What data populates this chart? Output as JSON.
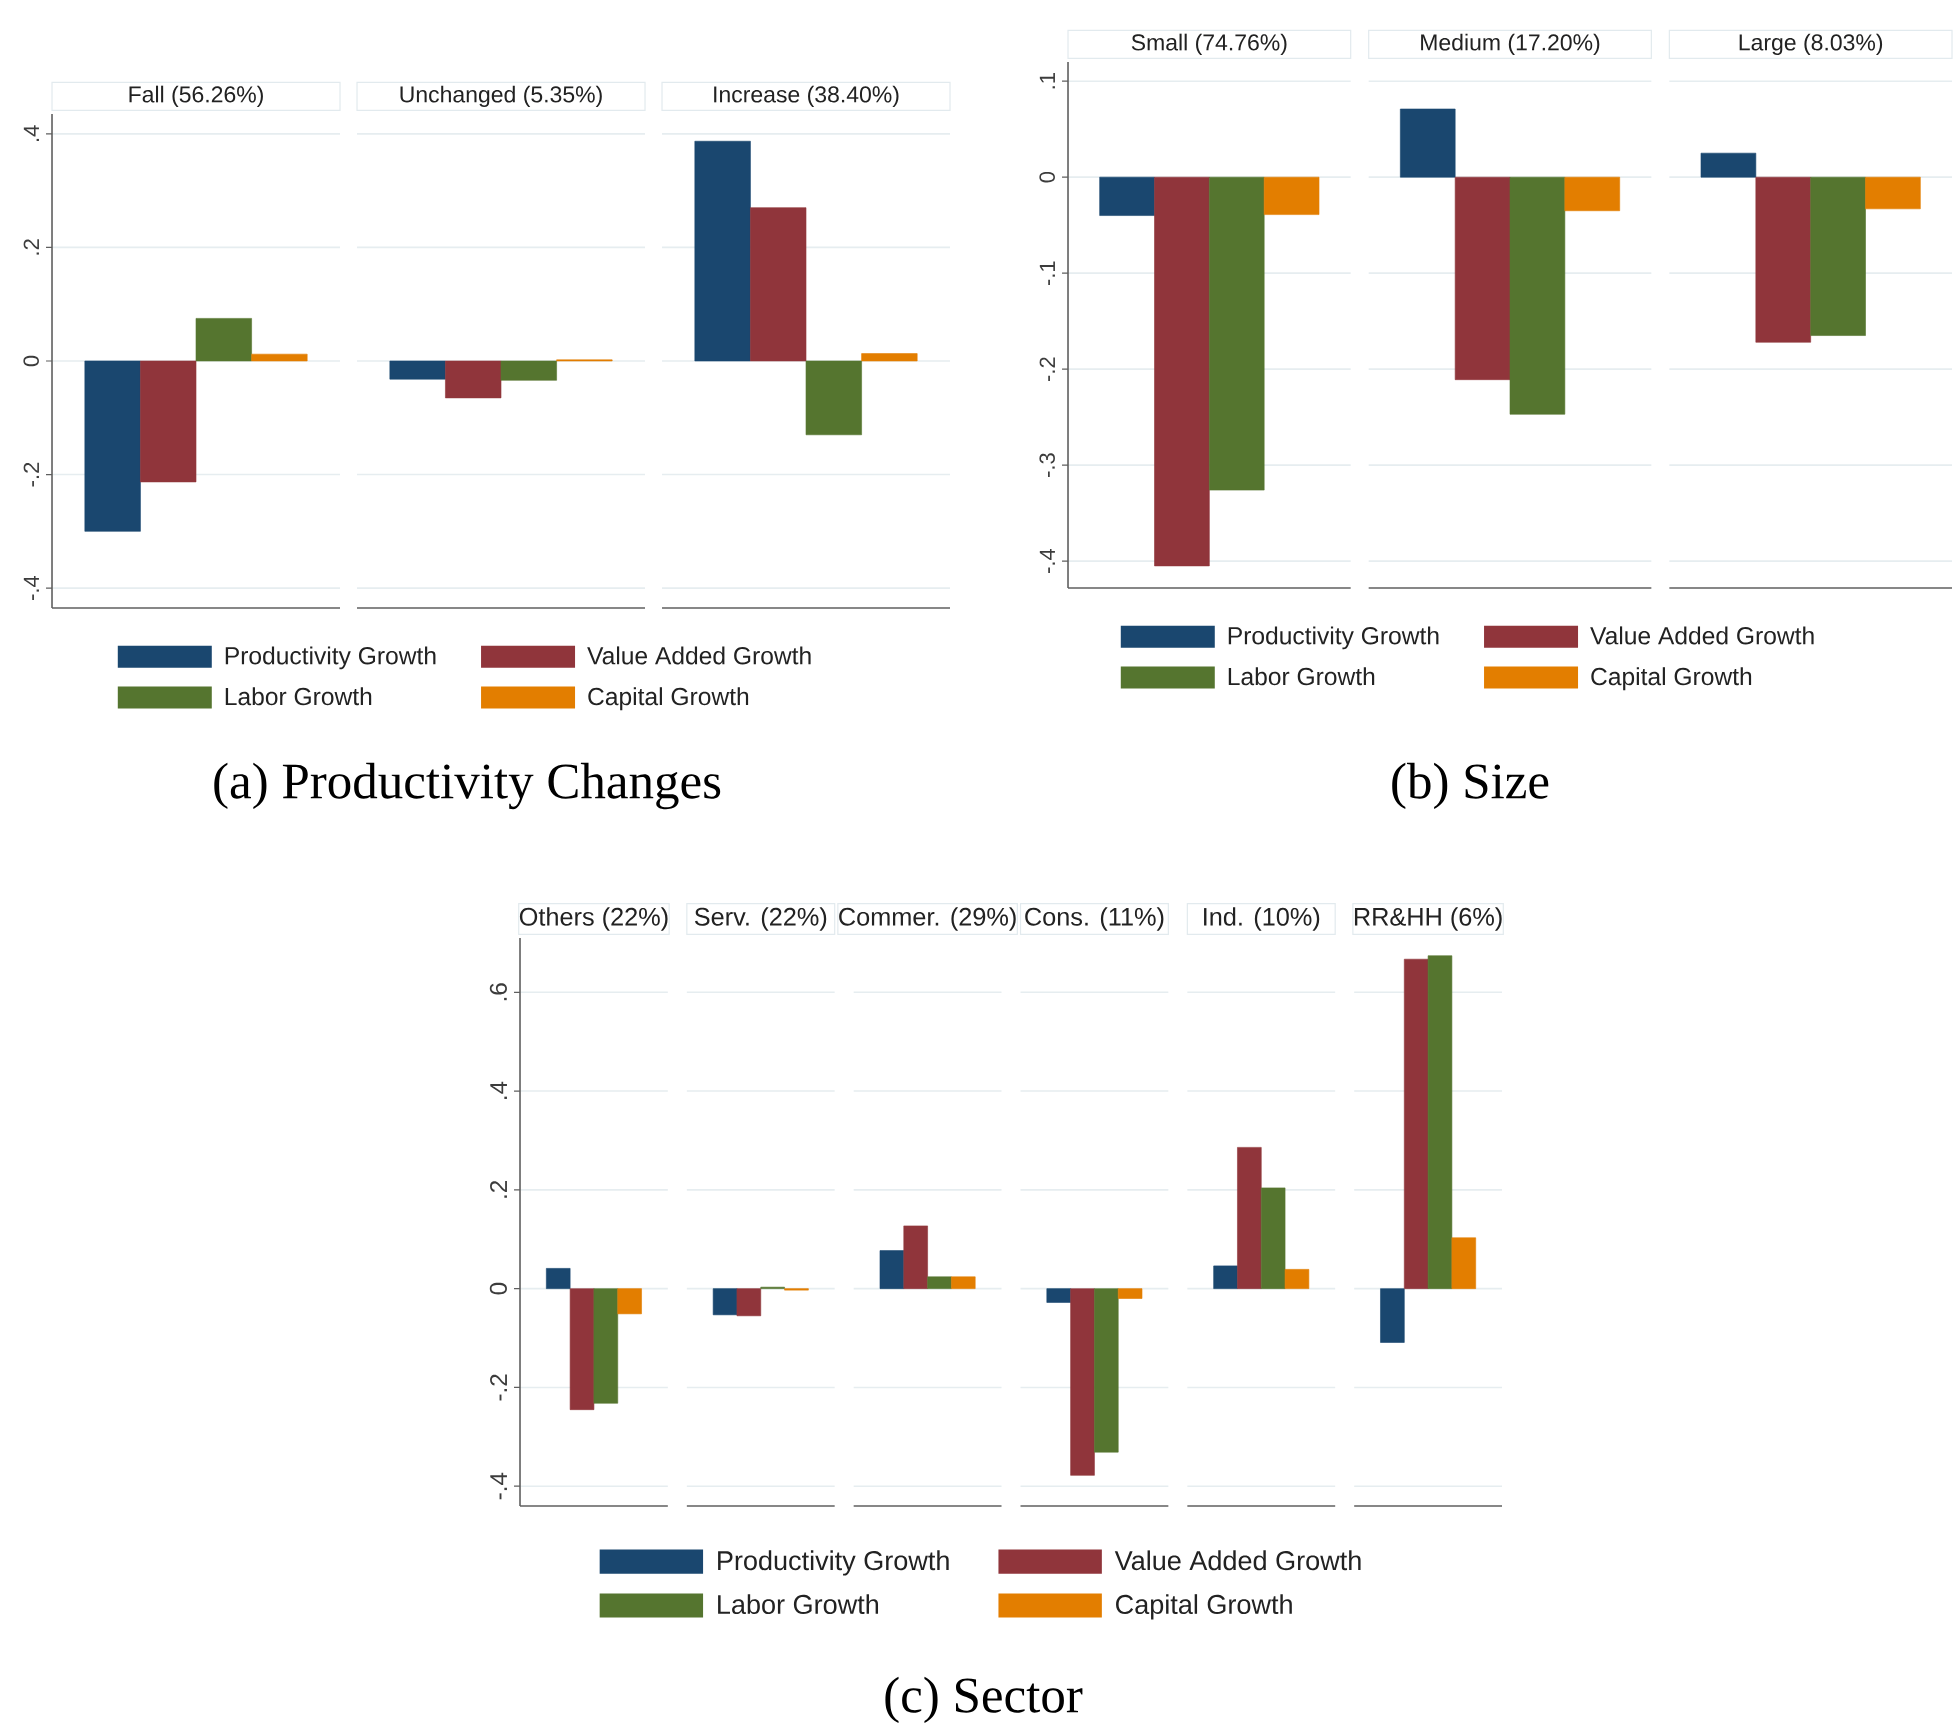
{
  "chart_data": [
    {
      "type": "bar",
      "title": "(a) Productivity Changes",
      "categories": [
        "Fall (56.26%)",
        "Unchanged (5.35%)",
        "Increase (38.40%)"
      ],
      "series": [
        {
          "name": "Productivity Growth",
          "color": "#1a476f",
          "values": [
            -0.3,
            -0.032,
            0.387
          ]
        },
        {
          "name": "Value Added Growth",
          "color": "#90353b",
          "values": [
            -0.213,
            -0.065,
            0.27
          ]
        },
        {
          "name": "Labor Growth",
          "color": "#55752f",
          "values": [
            0.075,
            -0.034,
            -0.13
          ]
        },
        {
          "name": "Capital Growth",
          "color": "#e37e00",
          "values": [
            0.012,
            0.002,
            0.013
          ]
        }
      ],
      "ylim": [
        -0.435,
        0.435
      ],
      "yticks": [
        {
          "value": -0.4,
          "label": "-.4"
        },
        {
          "value": -0.2,
          "label": "-.2"
        },
        0,
        {
          "value": 0.2,
          "label": ".2"
        },
        {
          "value": 0.4,
          "label": ".4"
        }
      ],
      "grid": "y",
      "legend": "bottom"
    },
    {
      "type": "bar",
      "title": "(b) Size",
      "categories": [
        "Small (74.76%)",
        "Medium (17.20%)",
        "Large (8.03%)"
      ],
      "series": [
        {
          "name": "Productivity Growth",
          "color": "#1a476f",
          "values": [
            -0.04,
            0.071,
            0.025
          ]
        },
        {
          "name": "Value Added Growth",
          "color": "#90353b",
          "values": [
            -0.405,
            -0.211,
            -0.172
          ]
        },
        {
          "name": "Labor Growth",
          "color": "#55752f",
          "values": [
            -0.326,
            -0.247,
            -0.165
          ]
        },
        {
          "name": "Capital Growth",
          "color": "#e37e00",
          "values": [
            -0.039,
            -0.035,
            -0.033
          ]
        }
      ],
      "ylim": [
        -0.428,
        0.12
      ],
      "yticks": [
        {
          "value": -0.4,
          "label": "-.4"
        },
        {
          "value": -0.3,
          "label": "-.3"
        },
        {
          "value": -0.2,
          "label": "-.2"
        },
        {
          "value": -0.1,
          "label": "-.1"
        },
        0,
        {
          "value": 0.1,
          "label": ".1"
        }
      ],
      "grid": "y",
      "legend": "bottom"
    },
    {
      "type": "bar",
      "title": "(c) Sector",
      "categories": [
        "Others (22%)",
        "Serv. (22%)",
        "Commer. (29%)",
        "Cons. (11%)",
        "Ind. (10%)",
        "RR&HH (6%)"
      ],
      "series": [
        {
          "name": "Productivity Growth",
          "color": "#1a476f",
          "values": [
            0.041,
            -0.053,
            0.077,
            -0.028,
            0.046,
            -0.109
          ]
        },
        {
          "name": "Value Added Growth",
          "color": "#90353b",
          "values": [
            -0.245,
            -0.055,
            0.127,
            -0.378,
            0.286,
            0.667
          ]
        },
        {
          "name": "Labor Growth",
          "color": "#55752f",
          "values": [
            -0.232,
            0.003,
            0.024,
            -0.331,
            0.204,
            0.674
          ]
        },
        {
          "name": "Capital Growth",
          "color": "#e37e00",
          "values": [
            -0.051,
            -0.003,
            0.024,
            -0.02,
            0.039,
            0.103
          ]
        }
      ],
      "ylim": [
        -0.44,
        0.71
      ],
      "yticks": [
        {
          "value": -0.4,
          "label": "-.4"
        },
        {
          "value": -0.2,
          "label": "-.2"
        },
        0,
        {
          "value": 0.2,
          "label": ".2"
        },
        {
          "value": 0.4,
          "label": ".4"
        },
        {
          "value": 0.6,
          "label": ".6"
        }
      ],
      "grid": "y",
      "legend": "bottom"
    }
  ]
}
